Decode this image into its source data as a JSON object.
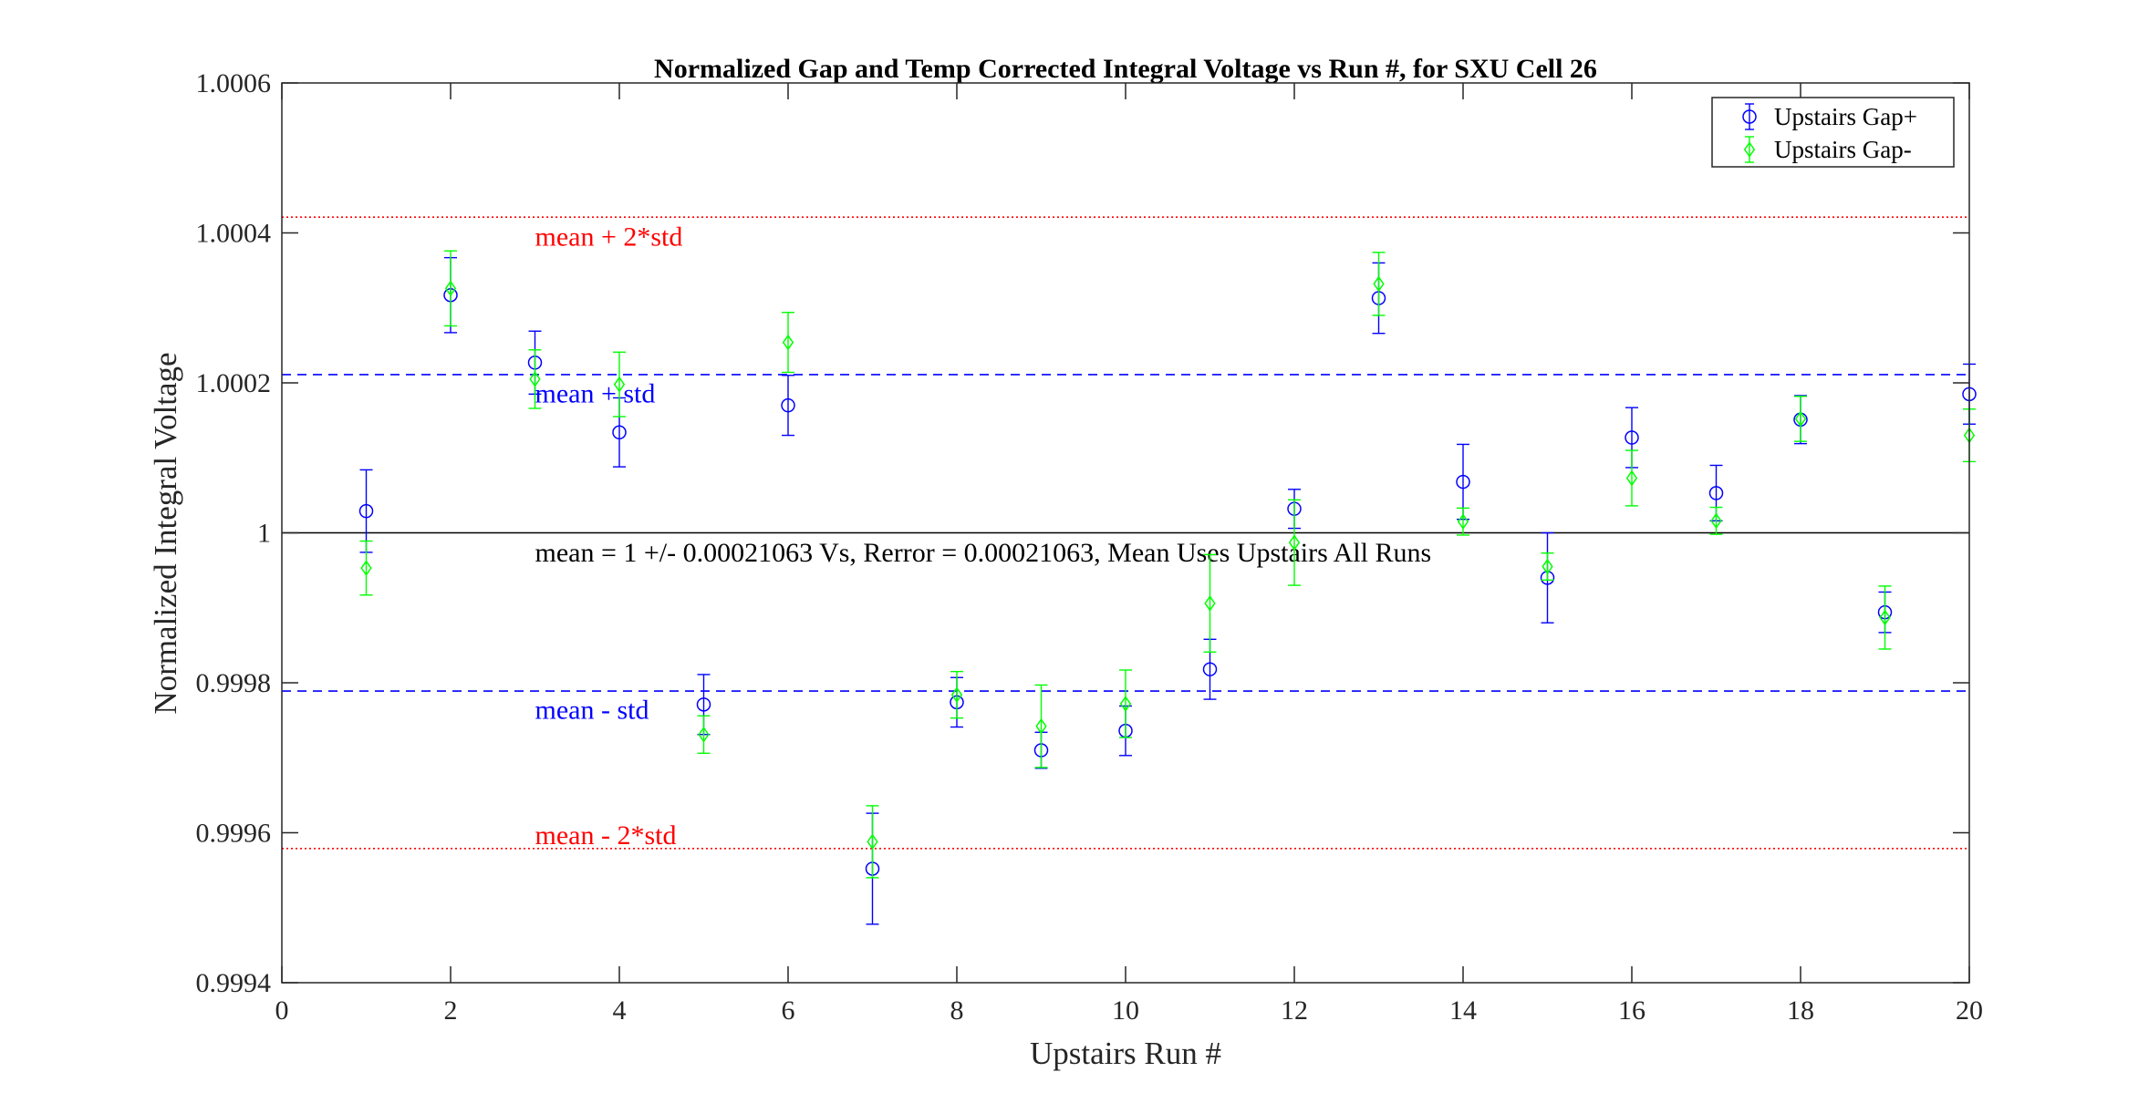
{
  "chart_data": {
    "type": "scatter",
    "title": "Normalized Gap and Temp Corrected Integral Voltage vs Run #, for SXU Cell 26",
    "xlabel": "Upstairs Run #",
    "ylabel": "Normalized Integral Voltage",
    "xlim": [
      0,
      20
    ],
    "ylim": [
      0.9994,
      1.0006
    ],
    "x_ticks": [
      0,
      2,
      4,
      6,
      8,
      10,
      12,
      14,
      16,
      18,
      20
    ],
    "x_tick_labels": [
      "0",
      "2",
      "4",
      "6",
      "8",
      "10",
      "12",
      "14",
      "16",
      "18",
      "20"
    ],
    "y_ticks": [
      0.9994,
      0.9996,
      0.9998,
      1.0,
      1.0002,
      1.0004,
      1.0006
    ],
    "y_tick_labels": [
      "0.9994",
      "0.9996",
      "0.9998",
      "1",
      "1.0002",
      "1.0004",
      "1.0006"
    ],
    "grid": false,
    "legend_position": "top-right",
    "series": [
      {
        "name": "Upstairs Gap+",
        "marker": "circle",
        "color": "#0000ff",
        "x": [
          1,
          2,
          3,
          4,
          5,
          6,
          7,
          8,
          9,
          10,
          11,
          12,
          13,
          14,
          15,
          16,
          17,
          18,
          19,
          20
        ],
        "y": [
          1.000029,
          1.000317,
          1.000227,
          1.000134,
          0.999771,
          1.00017,
          0.999552,
          0.999774,
          0.99971,
          0.999736,
          0.999818,
          1.000032,
          1.000313,
          1.000068,
          0.99994,
          1.000127,
          1.000053,
          1.000151,
          0.999894,
          1.000185
        ],
        "err": [
          5.5e-05,
          5e-05,
          4.2e-05,
          4.6e-05,
          4e-05,
          4e-05,
          7.4e-05,
          3.3e-05,
          2.4e-05,
          3.3e-05,
          4e-05,
          2.6e-05,
          4.7e-05,
          5e-05,
          6e-05,
          4e-05,
          3.7e-05,
          3.2e-05,
          2.7e-05,
          4e-05
        ]
      },
      {
        "name": "Upstairs Gap-",
        "marker": "diamond",
        "color": "#00ff00",
        "x": [
          1,
          2,
          3,
          4,
          5,
          6,
          7,
          8,
          9,
          10,
          11,
          12,
          13,
          14,
          15,
          16,
          17,
          18,
          19,
          20
        ],
        "y": [
          0.999953,
          1.000326,
          1.000205,
          1.000198,
          0.999731,
          1.000254,
          0.999588,
          0.999784,
          0.999742,
          0.999772,
          0.999906,
          0.999987,
          1.000332,
          1.000015,
          0.999955,
          1.000073,
          1.000016,
          1.000152,
          0.999887,
          1.00013
        ],
        "err": [
          3.6e-05,
          5e-05,
          3.9e-05,
          4.3e-05,
          2.5e-05,
          4e-05,
          4.8e-05,
          3.1e-05,
          5.5e-05,
          4.5e-05,
          6.5e-05,
          5.7e-05,
          4.2e-05,
          1.8e-05,
          1.8e-05,
          3.7e-05,
          1.8e-05,
          3e-05,
          4.2e-05,
          3.5e-05
        ]
      }
    ],
    "reference_lines": [
      {
        "y": 1.000421,
        "style": "dotted",
        "color": "#ff0000",
        "label": "mean + 2*std",
        "label_y": 1.000395
      },
      {
        "y": 1.000211,
        "style": "dashed",
        "color": "#0000ff",
        "label": "mean + std",
        "label_y": 1.000186
      },
      {
        "y": 1.0,
        "style": "solid",
        "color": "#000000",
        "label": "mean = 1 +/- 0.00021063 Vs, Rerror = 0.00021063, Mean Uses Upstairs All Runs",
        "label_y": 0.999974
      },
      {
        "y": 0.999789,
        "style": "dashed",
        "color": "#0000ff",
        "label": "mean - std",
        "label_y": 0.999764
      },
      {
        "y": 0.999579,
        "style": "dotted",
        "color": "#ff0000",
        "label": "mean - 2*std",
        "label_y": 0.999597
      }
    ],
    "annotation_x": 3
  }
}
